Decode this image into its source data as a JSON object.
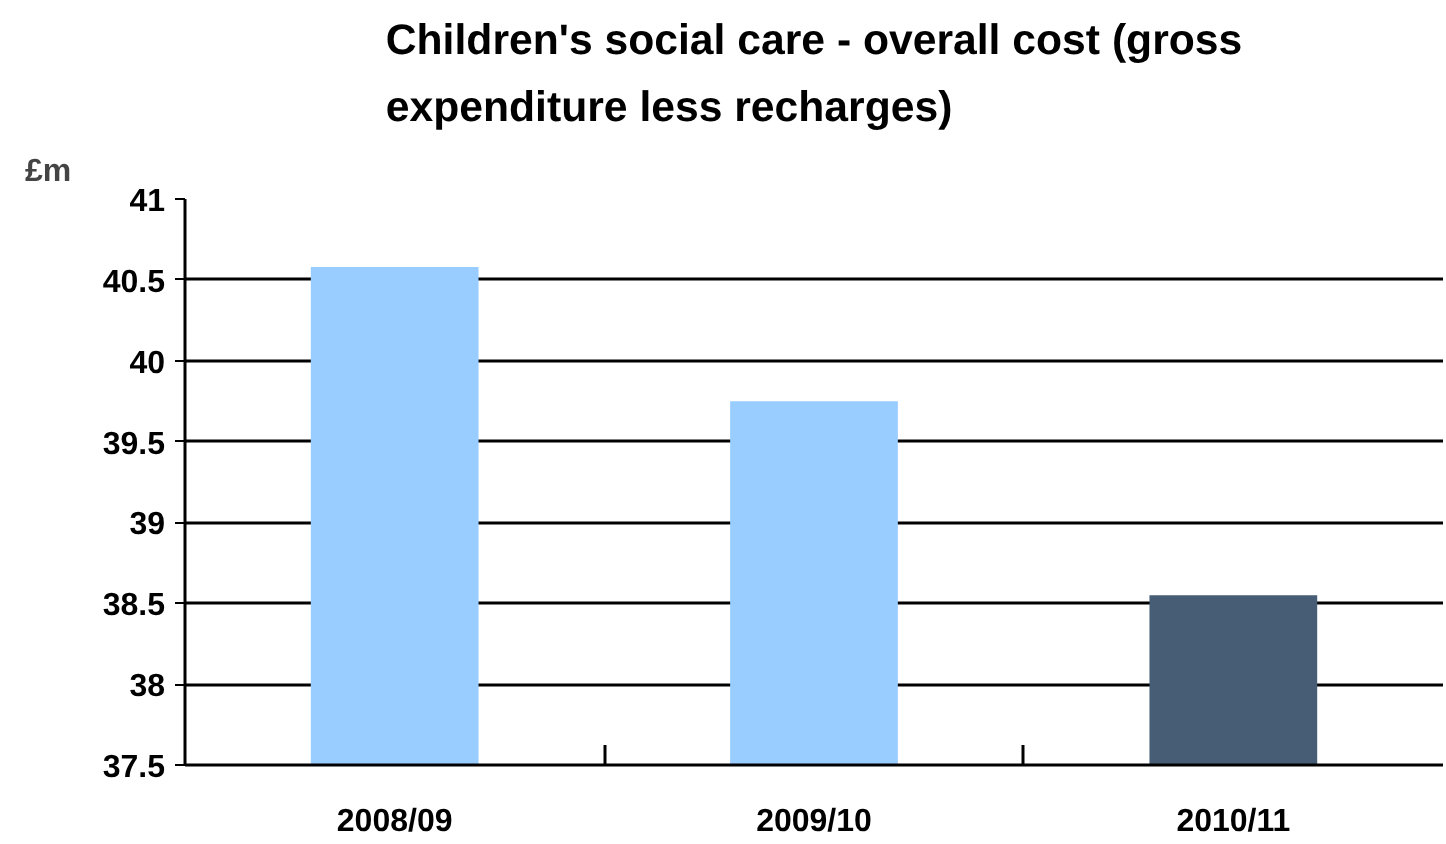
{
  "chart_data": {
    "type": "bar",
    "title": "Children's social care - overall cost (gross expenditure less recharges)",
    "ylabel": "£m",
    "categories": [
      "2008/09",
      "2009/10",
      "2010/11"
    ],
    "values": [
      40.58,
      39.75,
      38.55
    ],
    "colors": [
      "#99ccff",
      "#99ccff",
      "#475d75"
    ],
    "ylim": [
      37.5,
      41
    ],
    "yticks": [
      37.5,
      38,
      38.5,
      39,
      39.5,
      40,
      40.5,
      41
    ],
    "grid": "y"
  }
}
